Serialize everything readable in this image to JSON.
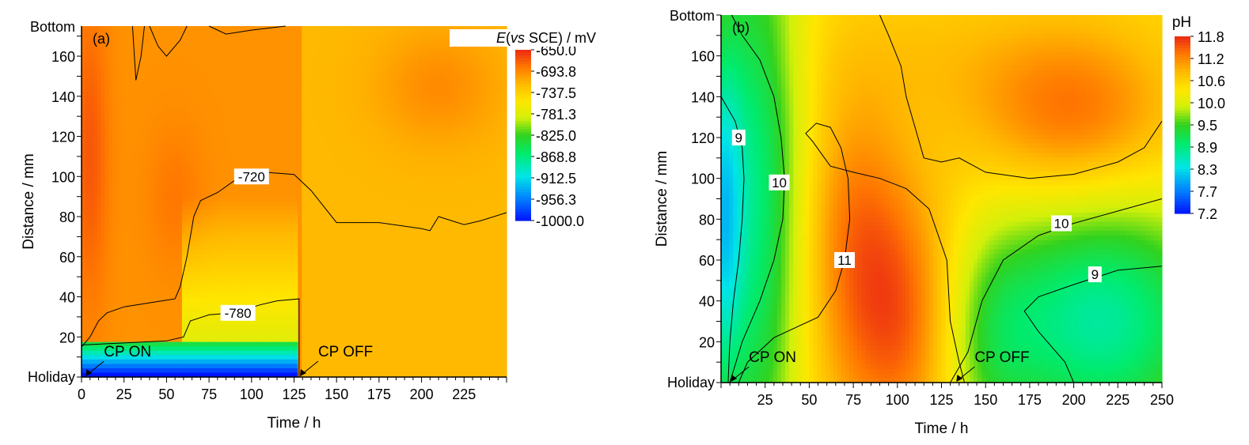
{
  "chart_data": [
    {
      "type": "heatmap",
      "panel_label": "(a)",
      "xlabel": "Time / h",
      "ylabel": "Distance / mm",
      "x_ticks": [
        0,
        25,
        50,
        75,
        100,
        125,
        150,
        175,
        200,
        225
      ],
      "y_ticks": [
        20,
        40,
        60,
        80,
        100,
        120,
        140,
        160
      ],
      "y_top_label": "Bottom",
      "y_bottom_label": "Holiday",
      "xlim": [
        0,
        250
      ],
      "ylim": [
        0,
        175
      ],
      "colorbar": {
        "title": "E(vs SCE) / mV",
        "title_parts": [
          "E",
          "(",
          "vs",
          " SCE) / mV"
        ],
        "ticks": [
          "-650.0",
          "-693.8",
          "-737.5",
          "-781.3",
          "-825.0",
          "-868.8",
          "-912.5",
          "-956.3",
          "-1000.0"
        ],
        "range": [
          -1000,
          -650
        ]
      },
      "contours": [
        {
          "level": "-720",
          "label": "-720",
          "label_at": [
            100,
            100
          ],
          "points": [
            [
              0,
              15
            ],
            [
              5,
              20
            ],
            [
              10,
              28
            ],
            [
              15,
              32
            ],
            [
              25,
              35
            ],
            [
              40,
              37
            ],
            [
              55,
              39
            ],
            [
              58,
              45
            ],
            [
              62,
              60
            ],
            [
              66,
              80
            ],
            [
              70,
              88
            ],
            [
              80,
              92
            ],
            [
              90,
              98
            ],
            [
              100,
              100
            ],
            [
              110,
              102
            ],
            [
              125,
              101
            ],
            [
              135,
              93
            ],
            [
              150,
              77
            ],
            [
              175,
              77
            ],
            [
              200,
              74
            ],
            [
              205,
              73
            ],
            [
              210,
              80
            ],
            [
              225,
              76
            ],
            [
              235,
              78
            ],
            [
              250,
              82
            ]
          ]
        },
        {
          "level": "-780",
          "label": "-780",
          "label_at": [
            92,
            32
          ],
          "points": [
            [
              0,
              16
            ],
            [
              25,
              17
            ],
            [
              50,
              18
            ],
            [
              60,
              20
            ],
            [
              64,
              28
            ],
            [
              75,
              31
            ],
            [
              90,
              32
            ],
            [
              105,
              36
            ],
            [
              115,
              38
            ],
            [
              128,
              39
            ],
            [
              128,
              0
            ]
          ]
        },
        {
          "level": "-720",
          "label": "",
          "label_at": null,
          "points": [
            [
              30,
              175
            ],
            [
              32,
              148
            ],
            [
              35,
              160
            ],
            [
              37,
              175
            ]
          ]
        },
        {
          "level": "-720",
          "label": "",
          "label_at": null,
          "points": [
            [
              40,
              175
            ],
            [
              45,
              165
            ],
            [
              50,
              160
            ],
            [
              58,
              168
            ],
            [
              62,
              175
            ]
          ]
        },
        {
          "level": "-720",
          "label": "",
          "label_at": null,
          "points": [
            [
              75,
              175
            ],
            [
              85,
              171
            ],
            [
              100,
              173
            ],
            [
              120,
              175
            ]
          ]
        }
      ],
      "annotations": [
        {
          "text": "CP ON",
          "x": 2,
          "y": 0
        },
        {
          "text": "CP OFF",
          "x": 128,
          "y": 0
        }
      ],
      "field_notes": "Mostly orange (about -700 to -690 mV) across the map; red-orange streak near x=0-10 at 60-160 mm and around x=200-225 at 130-160 mm; yellow-green to green region x=60-128, y=20-80; green band below about 15 mm for x<128 with blue (about -950 to -1000 mV) at the bottom edge; yellow/light-orange for x>130."
    },
    {
      "type": "heatmap",
      "panel_label": "(b)",
      "xlabel": "Time / h",
      "ylabel": "Distance / mm",
      "x_ticks": [
        25,
        50,
        75,
        100,
        125,
        150,
        175,
        200,
        225,
        250
      ],
      "y_ticks": [
        20,
        40,
        60,
        80,
        100,
        120,
        140,
        160
      ],
      "y_top_label": "Bottom",
      "y_bottom_label": "Holiday",
      "xlim": [
        0,
        250
      ],
      "ylim": [
        0,
        180
      ],
      "colorbar": {
        "title": "pH",
        "ticks": [
          "11.8",
          "11.2",
          "10.6",
          "10.0",
          "9.5",
          "8.9",
          "8.3",
          "7.7",
          "7.2"
        ],
        "range": [
          7.2,
          11.8
        ]
      },
      "contours": [
        {
          "level": "9",
          "label": "9",
          "label_at": [
            10,
            120
          ],
          "points": [
            [
              0,
              140
            ],
            [
              8,
              128
            ],
            [
              12,
              115
            ],
            [
              13,
              100
            ],
            [
              12,
              80
            ],
            [
              10,
              60
            ],
            [
              7,
              40
            ],
            [
              5,
              20
            ],
            [
              4,
              0
            ]
          ]
        },
        {
          "level": "10",
          "label": "10",
          "label_at": [
            33,
            98
          ],
          "points": [
            [
              6,
              180
            ],
            [
              12,
              170
            ],
            [
              22,
              158
            ],
            [
              30,
              140
            ],
            [
              34,
              120
            ],
            [
              36,
              100
            ],
            [
              35,
              80
            ],
            [
              30,
              60
            ],
            [
              22,
              40
            ],
            [
              12,
              20
            ],
            [
              5,
              0
            ]
          ]
        },
        {
          "level": "10",
          "label": "10",
          "label_at": [
            193,
            78
          ],
          "points": [
            [
              130,
              0
            ],
            [
              140,
              15
            ],
            [
              148,
              40
            ],
            [
              160,
              60
            ],
            [
              180,
              72
            ],
            [
              200,
              78
            ],
            [
              225,
              84
            ],
            [
              250,
              90
            ]
          ]
        },
        {
          "level": "9",
          "label": "9",
          "label_at": [
            212,
            53
          ],
          "points": [
            [
              200,
              0
            ],
            [
              195,
              10
            ],
            [
              180,
              25
            ],
            [
              172,
              35
            ],
            [
              180,
              42
            ],
            [
              200,
              48
            ],
            [
              225,
              55
            ],
            [
              250,
              57
            ]
          ]
        },
        {
          "level": "11",
          "label": "11",
          "label_at": [
            70,
            60
          ],
          "points": [
            [
              10,
              0
            ],
            [
              15,
              10
            ],
            [
              30,
              22
            ],
            [
              55,
              32
            ],
            [
              65,
              45
            ],
            [
              70,
              60
            ],
            [
              73,
              80
            ],
            [
              72,
              100
            ],
            [
              68,
              115
            ],
            [
              62,
              125
            ],
            [
              54,
              127
            ],
            [
              48,
              122
            ],
            [
              52,
              118
            ],
            [
              62,
              106
            ],
            [
              75,
              103
            ],
            [
              90,
              100
            ],
            [
              105,
              95
            ],
            [
              118,
              85
            ],
            [
              128,
              60
            ],
            [
              130,
              30
            ],
            [
              135,
              10
            ],
            [
              138,
              0
            ]
          ]
        },
        {
          "level": "11",
          "label": "",
          "label_at": null,
          "points": [
            [
              90,
              180
            ],
            [
              95,
              170
            ],
            [
              102,
              155
            ],
            [
              105,
              140
            ],
            [
              110,
              125
            ],
            [
              115,
              110
            ],
            [
              125,
              108
            ],
            [
              135,
              110
            ],
            [
              150,
              103
            ],
            [
              175,
              100
            ],
            [
              200,
              102
            ],
            [
              225,
              108
            ],
            [
              240,
              115
            ],
            [
              250,
              128
            ]
          ]
        }
      ],
      "annotations": [
        {
          "text": "CP ON",
          "x": 5,
          "y": 0
        },
        {
          "text": "CP OFF",
          "x": 133,
          "y": 0
        }
      ],
      "field_notes": "Cyan/blue (about 7.5-8.5) along the left edge below 120 mm, green band x=5-40 and green lower-right region x=150-250 below 90 mm with cyan center around (220,25); orange/red regions: x=50-130 below 100 mm (red near x=90-110, y=0-40) and large orange upper-right area with red-orange blob around (200,130); yellow strip between."
    }
  ]
}
